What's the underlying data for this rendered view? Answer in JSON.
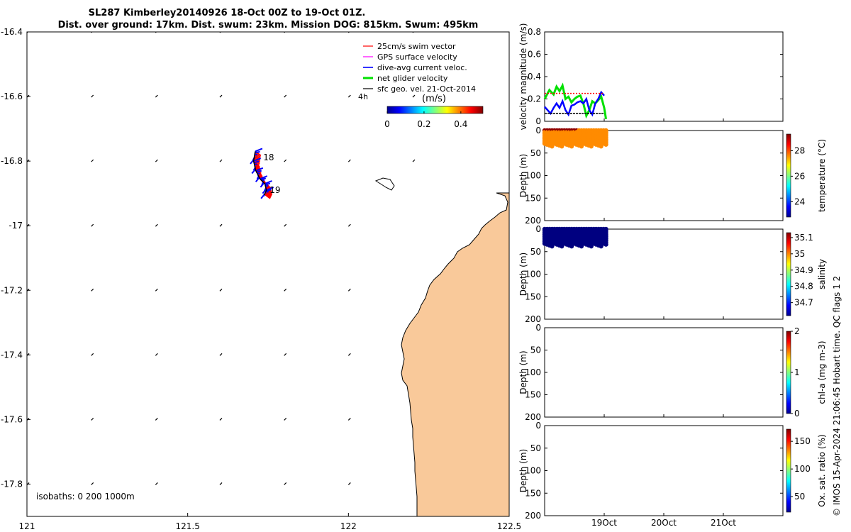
{
  "title_line1": "SL287 Kimberley20140926 18-Oct 00Z to 19-Oct 01Z.",
  "title_line2": "Dist. over ground: 17km. Dist. swum: 23km. Mission DOG: 815km. Swum: 495km",
  "copyright": "© IMOS 15-Apr-2024 21:06:45 Hobart time. QC flags 1  2",
  "colors": {
    "land": "#f9c99a",
    "swim": "#ff0000",
    "gps": "#ff00ff",
    "current": "#0000ff",
    "net": "#00e000",
    "geo": "#000000"
  },
  "chart_data": [
    {
      "name": "map",
      "type": "scatter",
      "xlim": [
        121.0,
        122.5
      ],
      "ylim": [
        -17.9,
        -16.4
      ],
      "x_ticks": [
        {
          "v": 121,
          "label": "121"
        },
        {
          "v": 121.5,
          "label": "121.5"
        },
        {
          "v": 122,
          "label": "122"
        },
        {
          "v": 122.5,
          "label": "122.5"
        }
      ],
      "y_ticks": [
        {
          "v": -16.4,
          "label": "-16.4"
        },
        {
          "v": -16.6,
          "label": "-16.6"
        },
        {
          "v": -16.8,
          "label": "-16.8"
        },
        {
          "v": -17,
          "label": "-17"
        },
        {
          "v": -17.2,
          "label": "-17.2"
        },
        {
          "v": -17.4,
          "label": "-17.4"
        },
        {
          "v": -17.6,
          "label": "-17.6"
        },
        {
          "v": -17.8,
          "label": "-17.8"
        }
      ],
      "legend": [
        {
          "label": "25cm/s swim vector",
          "color": "#ff0000"
        },
        {
          "label": "GPS surface velocity",
          "color": "#ff00ff"
        },
        {
          "label": "dive-avg current veloc.",
          "color": "#0000ff"
        },
        {
          "label": "net glider velocity",
          "color": "#00e000"
        },
        {
          "label": "sfc geo. vel. 21-Oct-2014",
          "color": "#000000"
        }
      ],
      "scale_label": "4h",
      "colorbar": {
        "title": "(m/s)",
        "ticks": [
          "0",
          "0.2",
          "0.4"
        ],
        "range": [
          0,
          0.52
        ]
      },
      "isobaths_label": "isobaths: 0   200  1000m",
      "track_labels": [
        {
          "text": "18",
          "lon": 121.735,
          "lat": -16.797
        },
        {
          "text": "19",
          "lon": 121.755,
          "lat": -16.898
        }
      ],
      "track": [
        [
          121.71,
          -16.77
        ],
        [
          121.705,
          -16.8
        ],
        [
          121.712,
          -16.83
        ],
        [
          121.725,
          -16.855
        ],
        [
          121.74,
          -16.87
        ],
        [
          121.745,
          -16.89
        ],
        [
          121.738,
          -16.905
        ]
      ],
      "geo_vectors": {
        "lons": [
          121.0,
          121.2,
          121.4,
          121.6,
          121.8,
          122.0,
          122.2
        ],
        "lats": [
          -16.4,
          -16.6,
          -16.8,
          -17.0,
          -17.2,
          -17.4,
          -17.6,
          -17.8
        ]
      },
      "coastline_note": "Kimberley coast, land east of ~122.2E"
    },
    {
      "name": "velocity",
      "type": "line",
      "ylabel": "velocity magnitude (m/s)",
      "ylim": [
        0,
        0.8
      ],
      "y_ticks": [
        "0",
        "0.2",
        "0.4",
        "0.6",
        "0.8"
      ],
      "x_range_days": [
        0,
        4.0
      ],
      "x_ticks": [
        {
          "day": 1,
          "label": "19Oct"
        },
        {
          "day": 2,
          "label": "20Oct"
        },
        {
          "day": 3,
          "label": "21Oct"
        }
      ],
      "series": [
        {
          "name": "net glider velocity",
          "color": "#00e000",
          "t": [
            0.0,
            0.08,
            0.15,
            0.2,
            0.25,
            0.3,
            0.35,
            0.4,
            0.45,
            0.5,
            0.55,
            0.6,
            0.65,
            0.7,
            0.75,
            0.8,
            0.85,
            0.9,
            0.95,
            1.0,
            1.03
          ],
          "v": [
            0.2,
            0.28,
            0.24,
            0.31,
            0.27,
            0.32,
            0.2,
            0.22,
            0.17,
            0.2,
            0.22,
            0.23,
            0.16,
            0.05,
            0.1,
            0.18,
            0.16,
            0.19,
            0.22,
            0.12,
            0.02
          ]
        },
        {
          "name": "dive-avg current veloc.",
          "color": "#0000ff",
          "t": [
            0.0,
            0.05,
            0.1,
            0.15,
            0.2,
            0.25,
            0.3,
            0.35,
            0.4,
            0.45,
            0.5,
            0.55,
            0.6,
            0.65,
            0.7,
            0.75,
            0.8,
            0.85,
            0.9,
            0.95,
            1.0
          ],
          "v": [
            0.13,
            0.1,
            0.07,
            0.12,
            0.16,
            0.12,
            0.18,
            0.1,
            0.06,
            0.14,
            0.15,
            0.17,
            0.18,
            0.16,
            0.2,
            0.1,
            0.06,
            0.16,
            0.2,
            0.26,
            0.23
          ]
        },
        {
          "name": "25cm/s swim vector",
          "color": "#ff0000",
          "t": [
            0.0,
            0.1,
            0.2,
            0.3,
            0.4,
            0.5,
            0.6,
            0.7,
            0.8,
            0.9,
            1.0
          ],
          "v": [
            0.25,
            0.25,
            0.25,
            0.25,
            0.25,
            0.25,
            0.25,
            0.25,
            0.25,
            0.25,
            0.25
          ]
        },
        {
          "name": "sfc geo. vel.",
          "color": "#000000",
          "t": [
            0.0,
            0.2,
            0.4,
            0.6,
            0.8,
            1.0
          ],
          "v": [
            0.07,
            0.07,
            0.07,
            0.07,
            0.07,
            0.07
          ]
        }
      ]
    },
    {
      "name": "temperature",
      "type": "scatter",
      "ylabel": "Depth (m)",
      "ylim": [
        0,
        200
      ],
      "y_ticks": [
        "0",
        "50",
        "100",
        "150",
        "200"
      ],
      "colorbar": {
        "label": "temperature (°C)",
        "ticks": [
          {
            "v": 24,
            "label": "24"
          },
          {
            "v": 26,
            "label": "26"
          },
          {
            "v": 28,
            "label": "28"
          }
        ],
        "range": [
          22.8,
          29.3
        ]
      },
      "points": {
        "t_start": 0.0,
        "t_end": 1.03,
        "depth_max": 35,
        "value_deep": 27.6,
        "value_surface": 29.2
      }
    },
    {
      "name": "salinity",
      "type": "scatter",
      "ylabel": "Depth (m)",
      "ylim": [
        0,
        200
      ],
      "y_ticks": [
        "0",
        "50",
        "100",
        "150",
        "200"
      ],
      "colorbar": {
        "label": "salinity",
        "ticks": [
          {
            "v": 34.7,
            "label": "34.7"
          },
          {
            "v": 34.8,
            "label": "34.8"
          },
          {
            "v": 34.9,
            "label": "34.9"
          },
          {
            "v": 35,
            "label": "35"
          },
          {
            "v": 35.1,
            "label": "35.1"
          }
        ],
        "range": [
          34.62,
          35.13
        ]
      },
      "points": {
        "t_start": 0.0,
        "t_end": 1.03,
        "depth_max": 38,
        "value_deep": 34.62,
        "value_surface": 34.62
      }
    },
    {
      "name": "chl-a",
      "type": "scatter",
      "ylabel": "Depth (m)",
      "ylim": [
        0,
        200
      ],
      "y_ticks": [
        "0",
        "50",
        "100",
        "150",
        "200"
      ],
      "colorbar": {
        "label": "chl-a (mg m-3)",
        "ticks": [
          {
            "v": 0,
            "label": "0"
          },
          {
            "v": 1,
            "label": "1"
          },
          {
            "v": 2,
            "label": "2"
          }
        ],
        "range": [
          0,
          2
        ]
      }
    },
    {
      "name": "oxygen",
      "type": "scatter",
      "ylabel": "Depth (m)",
      "ylim": [
        0,
        200
      ],
      "y_ticks": [
        "0",
        "50",
        "100",
        "150",
        "200"
      ],
      "colorbar": {
        "label": "Ox. sat. ratio (%)",
        "ticks": [
          {
            "v": 50,
            "label": "50"
          },
          {
            "v": 100,
            "label": "100"
          },
          {
            "v": 150,
            "label": "150"
          }
        ],
        "range": [
          22,
          172
        ]
      }
    }
  ]
}
